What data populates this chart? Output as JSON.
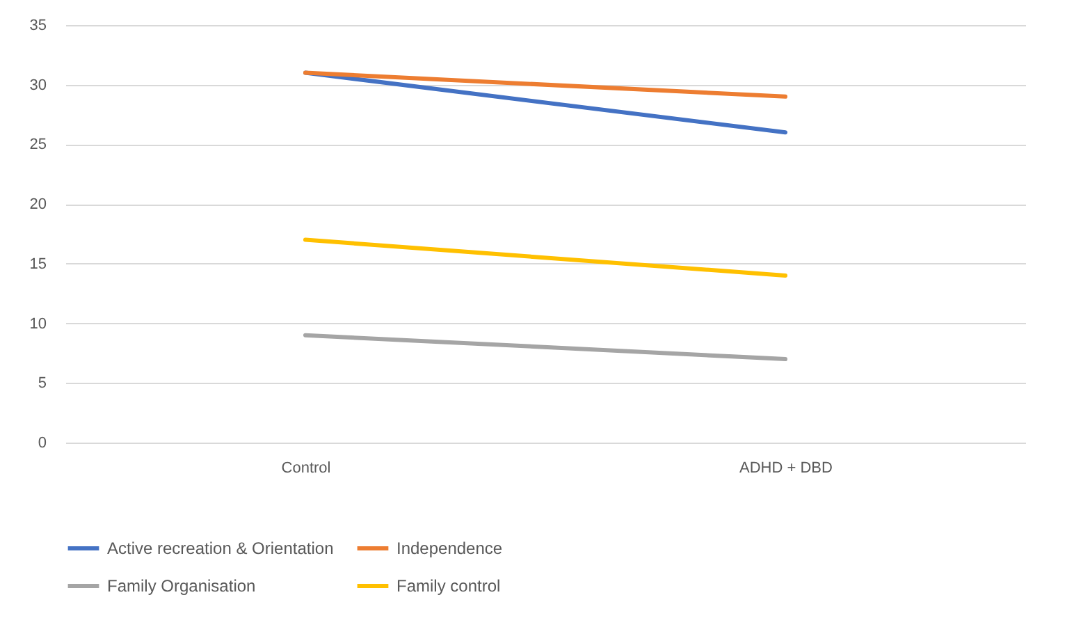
{
  "chart_data": {
    "type": "line",
    "categories": [
      "Control",
      "ADHD + DBD"
    ],
    "series": [
      {
        "name": "Active recreation & Orientation",
        "color": "#4472c4",
        "values": [
          31,
          26
        ]
      },
      {
        "name": "Independence",
        "color": "#ed7d31",
        "values": [
          31,
          29
        ]
      },
      {
        "name": "Family Organisation",
        "color": "#a5a5a5",
        "values": [
          9,
          7
        ]
      },
      {
        "name": "Family control",
        "color": "#ffc000",
        "values": [
          17,
          14
        ]
      }
    ],
    "ylim": [
      0,
      35
    ],
    "yticks": [
      0,
      5,
      10,
      15,
      20,
      25,
      30,
      35
    ],
    "grid": "y",
    "legend": "bottom",
    "marker": "none",
    "line_style": "solid"
  }
}
